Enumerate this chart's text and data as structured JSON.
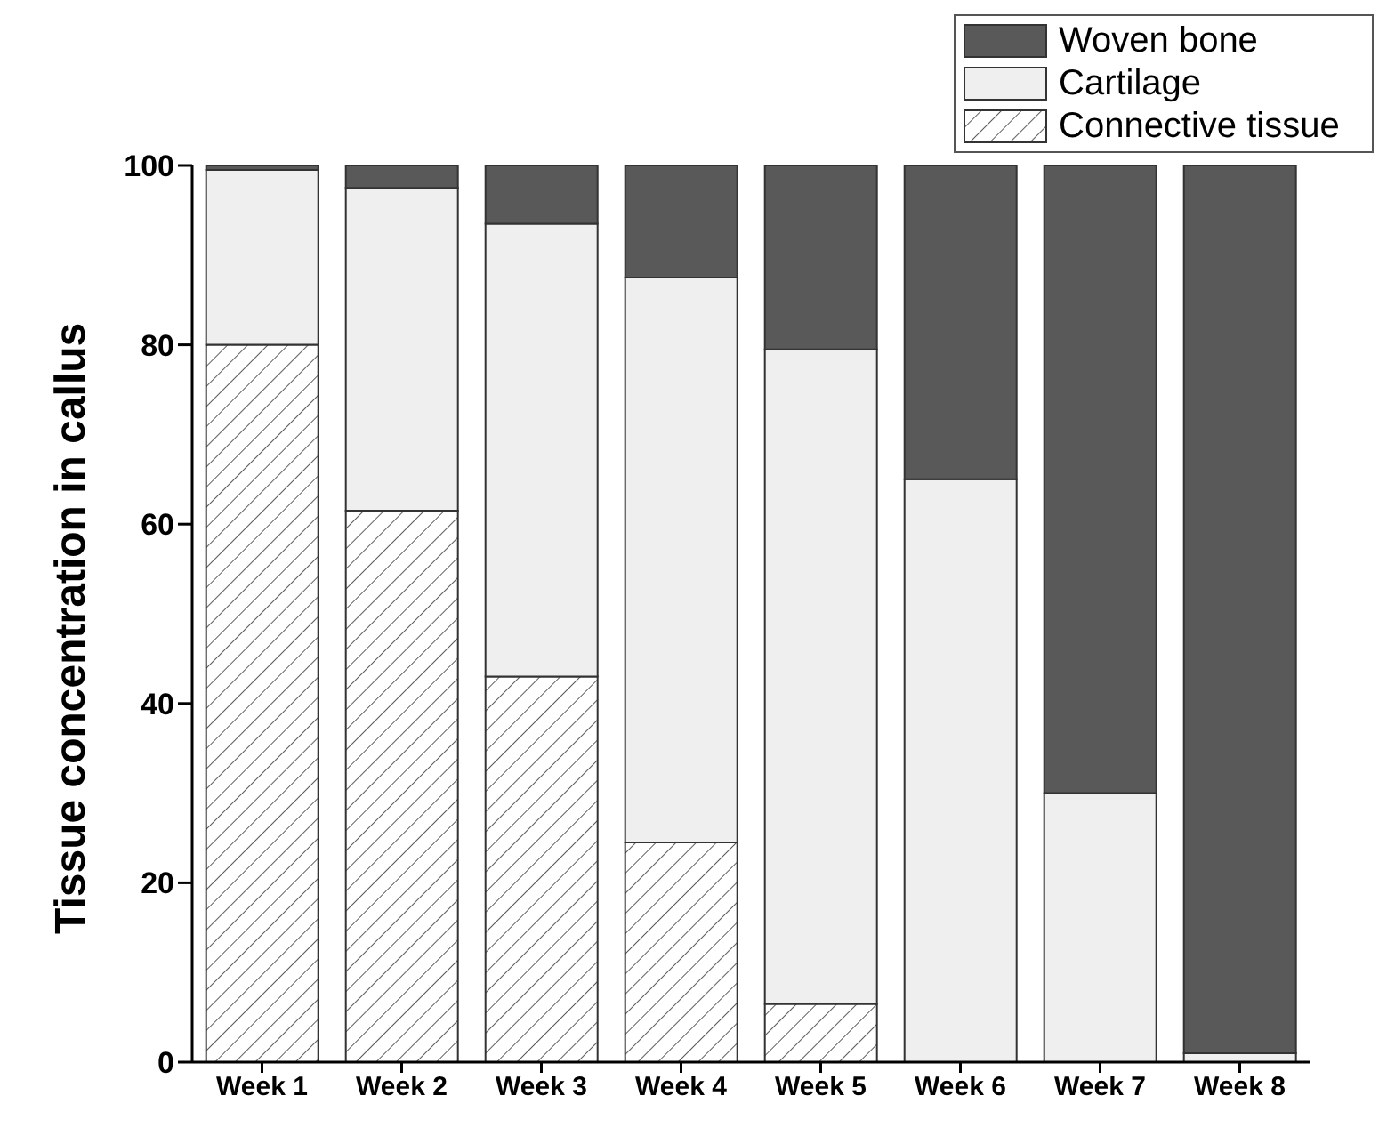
{
  "chart_data": {
    "type": "bar",
    "stacked": true,
    "ylabel": "Tissue concentration in callus",
    "categories": [
      "Week 1",
      "Week 2",
      "Week 3",
      "Week 4",
      "Week 5",
      "Week 6",
      "Week 7",
      "Week 8"
    ],
    "series": [
      {
        "name": "Connective tissue",
        "color": "#333333",
        "values": [
          80,
          61.5,
          43,
          24.5,
          6.5,
          0,
          0,
          0
        ]
      },
      {
        "name": "Cartilage",
        "color": "#efefef",
        "values": [
          19.5,
          36,
          50.5,
          63,
          73,
          65,
          30,
          1
        ]
      },
      {
        "name": "Woven bone",
        "color": "#595959",
        "values": [
          0.5,
          2.5,
          6.5,
          12.5,
          20.5,
          35,
          70,
          99
        ]
      }
    ],
    "ylim": [
      0,
      100
    ],
    "yticks": [
      0,
      20,
      40,
      60,
      80,
      100
    ],
    "grid": false,
    "legend": "top right"
  }
}
